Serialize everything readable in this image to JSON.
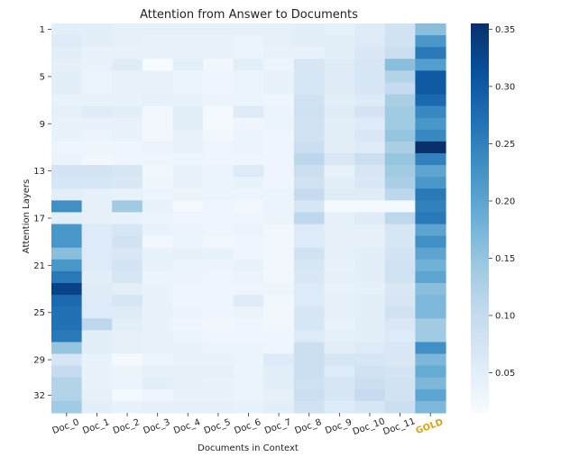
{
  "chart_data": {
    "type": "heatmap",
    "title": "Attention from Answer to Documents",
    "xlabel": "Documents in Context",
    "ylabel": "Attention Layers",
    "columns": [
      "Doc_0",
      "Doc_1",
      "Doc_2",
      "Doc_3",
      "Doc_4",
      "Doc_5",
      "Doc_6",
      "Doc_7",
      "Doc_8",
      "Doc_9",
      "Doc_10",
      "Doc_11",
      "GOLD"
    ],
    "highlight_column": "GOLD",
    "highlight_color": "#d4a017",
    "row_tick_labels": [
      "1",
      "5",
      "9",
      "13",
      "17",
      "21",
      "25",
      "29",
      "32"
    ],
    "row_tick_values": [
      1,
      5,
      9,
      13,
      17,
      21,
      25,
      29,
      32
    ],
    "colorbar": {
      "min": 0.015,
      "max": 0.355,
      "tick_values": [
        0.05,
        0.1,
        0.15,
        0.2,
        0.25,
        0.3,
        0.35
      ],
      "tick_labels": [
        "0.05",
        "0.10",
        "0.15",
        "0.20",
        "0.25",
        "0.30",
        "0.35"
      ],
      "colors": [
        "#f7fbff",
        "#deebf7",
        "#c6dbef",
        "#9ecae1",
        "#6baed6",
        "#4292c6",
        "#2171b5",
        "#08519c",
        "#08306b"
      ]
    },
    "values": [
      [
        0.05,
        0.05,
        0.045,
        0.045,
        0.045,
        0.045,
        0.045,
        0.045,
        0.05,
        0.045,
        0.055,
        0.08,
        0.16
      ],
      [
        0.06,
        0.05,
        0.045,
        0.04,
        0.04,
        0.04,
        0.035,
        0.045,
        0.05,
        0.05,
        0.06,
        0.08,
        0.22
      ],
      [
        0.05,
        0.04,
        0.04,
        0.04,
        0.04,
        0.04,
        0.035,
        0.04,
        0.04,
        0.05,
        0.065,
        0.09,
        0.26
      ],
      [
        0.045,
        0.04,
        0.055,
        0.015,
        0.05,
        0.025,
        0.05,
        0.035,
        0.07,
        0.055,
        0.07,
        0.16,
        0.21
      ],
      [
        0.05,
        0.035,
        0.04,
        0.04,
        0.035,
        0.03,
        0.035,
        0.04,
        0.07,
        0.055,
        0.07,
        0.12,
        0.3
      ],
      [
        0.05,
        0.035,
        0.04,
        0.04,
        0.035,
        0.03,
        0.035,
        0.04,
        0.07,
        0.055,
        0.07,
        0.1,
        0.3
      ],
      [
        0.04,
        0.04,
        0.04,
        0.045,
        0.04,
        0.035,
        0.035,
        0.03,
        0.08,
        0.05,
        0.06,
        0.13,
        0.28
      ],
      [
        0.045,
        0.055,
        0.05,
        0.025,
        0.05,
        0.02,
        0.055,
        0.035,
        0.085,
        0.055,
        0.075,
        0.14,
        0.24
      ],
      [
        0.04,
        0.04,
        0.04,
        0.025,
        0.05,
        0.02,
        0.03,
        0.035,
        0.08,
        0.05,
        0.06,
        0.14,
        0.22
      ],
      [
        0.04,
        0.035,
        0.04,
        0.025,
        0.04,
        0.025,
        0.035,
        0.03,
        0.08,
        0.05,
        0.065,
        0.15,
        0.24
      ],
      [
        0.03,
        0.03,
        0.03,
        0.035,
        0.04,
        0.03,
        0.035,
        0.03,
        0.09,
        0.05,
        0.06,
        0.13,
        0.355
      ],
      [
        0.035,
        0.025,
        0.03,
        0.03,
        0.035,
        0.03,
        0.03,
        0.03,
        0.11,
        0.065,
        0.09,
        0.15,
        0.25
      ],
      [
        0.075,
        0.075,
        0.07,
        0.025,
        0.04,
        0.035,
        0.06,
        0.03,
        0.09,
        0.04,
        0.07,
        0.14,
        0.2
      ],
      [
        0.07,
        0.07,
        0.065,
        0.03,
        0.04,
        0.035,
        0.04,
        0.03,
        0.08,
        0.05,
        0.065,
        0.13,
        0.22
      ],
      [
        0.05,
        0.045,
        0.04,
        0.035,
        0.035,
        0.035,
        0.035,
        0.035,
        0.1,
        0.055,
        0.055,
        0.11,
        0.26
      ],
      [
        0.23,
        0.045,
        0.14,
        0.04,
        0.02,
        0.03,
        0.025,
        0.035,
        0.07,
        0.02,
        0.02,
        0.02,
        0.25
      ],
      [
        0.05,
        0.045,
        0.04,
        0.035,
        0.03,
        0.03,
        0.03,
        0.035,
        0.11,
        0.045,
        0.055,
        0.11,
        0.26
      ],
      [
        0.22,
        0.06,
        0.07,
        0.04,
        0.035,
        0.03,
        0.035,
        0.025,
        0.06,
        0.045,
        0.045,
        0.07,
        0.2
      ],
      [
        0.22,
        0.06,
        0.08,
        0.025,
        0.035,
        0.025,
        0.03,
        0.025,
        0.06,
        0.045,
        0.045,
        0.07,
        0.23
      ],
      [
        0.16,
        0.06,
        0.065,
        0.04,
        0.045,
        0.04,
        0.03,
        0.025,
        0.08,
        0.045,
        0.05,
        0.075,
        0.2
      ],
      [
        0.22,
        0.06,
        0.075,
        0.04,
        0.035,
        0.035,
        0.04,
        0.025,
        0.07,
        0.04,
        0.05,
        0.08,
        0.18
      ],
      [
        0.26,
        0.05,
        0.07,
        0.035,
        0.035,
        0.03,
        0.035,
        0.025,
        0.065,
        0.045,
        0.05,
        0.08,
        0.2
      ],
      [
        0.33,
        0.055,
        0.05,
        0.04,
        0.03,
        0.03,
        0.03,
        0.03,
        0.06,
        0.04,
        0.045,
        0.065,
        0.16
      ],
      [
        0.28,
        0.06,
        0.07,
        0.04,
        0.03,
        0.03,
        0.055,
        0.025,
        0.06,
        0.045,
        0.05,
        0.07,
        0.17
      ],
      [
        0.27,
        0.06,
        0.055,
        0.04,
        0.035,
        0.03,
        0.035,
        0.025,
        0.07,
        0.045,
        0.05,
        0.08,
        0.17
      ],
      [
        0.27,
        0.11,
        0.05,
        0.04,
        0.03,
        0.025,
        0.03,
        0.025,
        0.07,
        0.04,
        0.05,
        0.065,
        0.14
      ],
      [
        0.26,
        0.05,
        0.045,
        0.04,
        0.035,
        0.03,
        0.03,
        0.03,
        0.06,
        0.045,
        0.05,
        0.06,
        0.14
      ],
      [
        0.15,
        0.05,
        0.045,
        0.04,
        0.04,
        0.035,
        0.035,
        0.03,
        0.09,
        0.05,
        0.06,
        0.065,
        0.23
      ],
      [
        0.07,
        0.04,
        0.02,
        0.035,
        0.04,
        0.04,
        0.035,
        0.06,
        0.09,
        0.07,
        0.07,
        0.065,
        0.17
      ],
      [
        0.1,
        0.04,
        0.035,
        0.045,
        0.045,
        0.045,
        0.035,
        0.05,
        0.09,
        0.06,
        0.08,
        0.075,
        0.19
      ],
      [
        0.12,
        0.04,
        0.035,
        0.05,
        0.045,
        0.04,
        0.035,
        0.05,
        0.085,
        0.07,
        0.09,
        0.08,
        0.17
      ],
      [
        0.12,
        0.045,
        0.02,
        0.03,
        0.04,
        0.04,
        0.035,
        0.045,
        0.09,
        0.07,
        0.1,
        0.08,
        0.2
      ],
      [
        0.14,
        0.05,
        0.04,
        0.045,
        0.045,
        0.045,
        0.04,
        0.05,
        0.08,
        0.06,
        0.07,
        0.09,
        0.17
      ]
    ]
  }
}
